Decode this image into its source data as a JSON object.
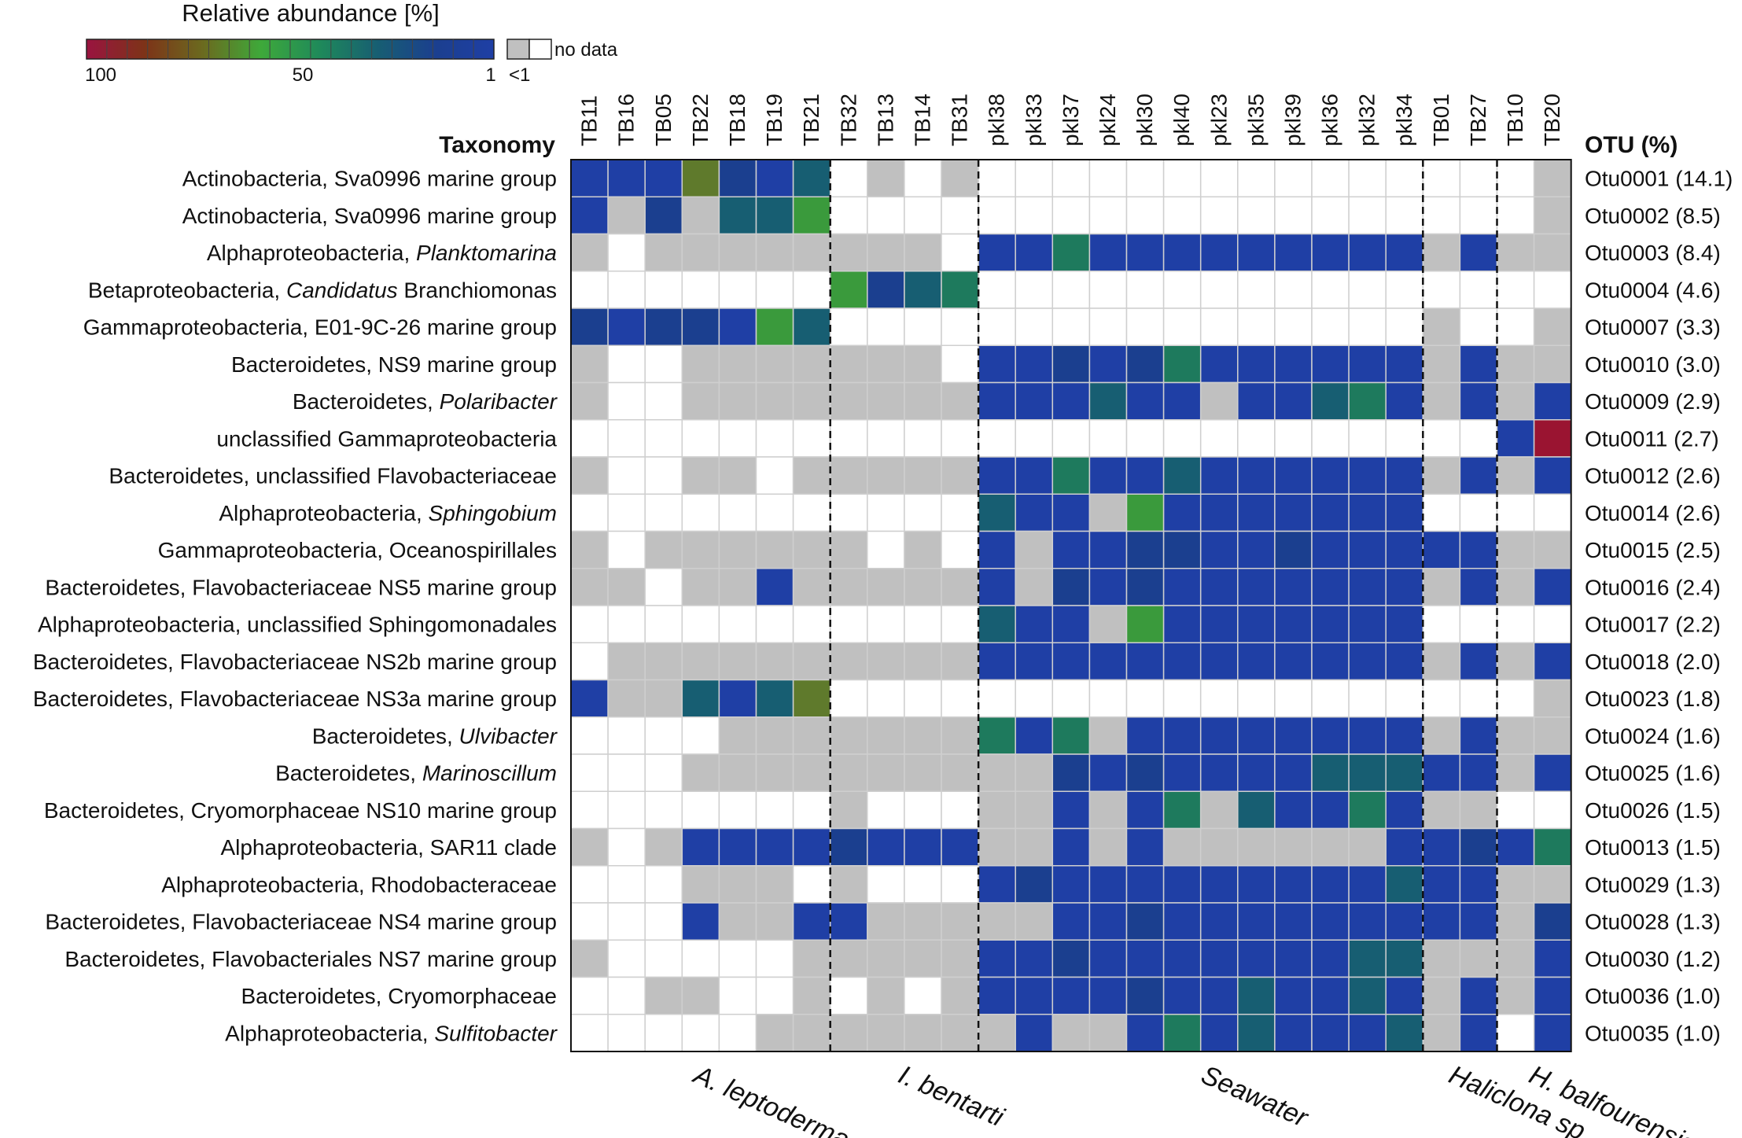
{
  "chart_data": {
    "type": "heatmap",
    "legend": {
      "title": "Relative abundance [%]",
      "ticks": [
        "100",
        "50",
        "1"
      ],
      "lt1_label": "<1",
      "nodata_label": "no data",
      "scale_max": 100,
      "scale_min": 1,
      "gradient_colors": [
        "#9a1440",
        "#7d3318",
        "#6b6a1f",
        "#3ea93a",
        "#1f8a5a",
        "#175e72",
        "#1b3f8f",
        "#1f3fa5"
      ],
      "nodata_color": "#c0c0c0",
      "lt1_color": "#ffffff"
    },
    "row_header": "Taxonomy",
    "otu_header": "OTU (%)",
    "columns": [
      "TB11",
      "TB16",
      "TB05",
      "TB22",
      "TB18",
      "TB19",
      "TB21",
      "TB32",
      "TB13",
      "TB14",
      "TB31",
      "pkl38",
      "pkl33",
      "pkl37",
      "pkl24",
      "pkl30",
      "pkl40",
      "pkl23",
      "pkl35",
      "pkl39",
      "pkl36",
      "pkl32",
      "pkl34",
      "TB01",
      "TB27",
      "TB10",
      "TB20"
    ],
    "groups": [
      {
        "name": "A. leptoderma",
        "start": 0,
        "end": 6
      },
      {
        "name": "I. bentarti",
        "start": 7,
        "end": 10
      },
      {
        "name": "Seawater",
        "start": 11,
        "end": 22
      },
      {
        "name": "Haliclona sp.",
        "start": 23,
        "end": 24
      },
      {
        "name": "H. balfourensis",
        "start": 25,
        "end": 26
      }
    ],
    "rows": [
      {
        "taxon": "Actinobacteria, Sva0996 marine group",
        "genus": "",
        "otu": "Otu0001 (14.1)"
      },
      {
        "taxon": "Actinobacteria, Sva0996 marine group",
        "genus": "",
        "otu": "Otu0002 (8.5)"
      },
      {
        "taxon": "Alphaproteobacteria, ",
        "genus": "Planktomarina",
        "otu": "Otu0003 (8.4)"
      },
      {
        "taxon": "Betaproteobacteria, ",
        "genus": "Candidatus",
        "suffix": " Branchiomonas",
        "otu": "Otu0004 (4.6)"
      },
      {
        "taxon": "Gammaproteobacteria, E01-9C-26 marine group",
        "genus": "",
        "otu": "Otu0007 (3.3)"
      },
      {
        "taxon": "Bacteroidetes, NS9 marine group",
        "genus": "",
        "otu": "Otu0010 (3.0)"
      },
      {
        "taxon": "Bacteroidetes, ",
        "genus": "Polaribacter",
        "otu": "Otu0009 (2.9)"
      },
      {
        "taxon": "unclassified Gammaproteobacteria",
        "genus": "",
        "otu": "Otu0011 (2.7)"
      },
      {
        "taxon": "Bacteroidetes, unclassified Flavobacteriaceae",
        "genus": "",
        "otu": "Otu0012 (2.6)"
      },
      {
        "taxon": "Alphaproteobacteria, ",
        "genus": "Sphingobium",
        "otu": "Otu0014 (2.6)"
      },
      {
        "taxon": "Gammaproteobacteria, Oceanospirillales",
        "genus": "",
        "otu": "Otu0015 (2.5)"
      },
      {
        "taxon": "Bacteroidetes, Flavobacteriaceae NS5 marine group",
        "genus": "",
        "otu": "Otu0016 (2.4)"
      },
      {
        "taxon": "Alphaproteobacteria, unclassified Sphingomonadales",
        "genus": "",
        "otu": "Otu0017 (2.2)"
      },
      {
        "taxon": "Bacteroidetes, Flavobacteriaceae NS2b marine group",
        "genus": "",
        "otu": "Otu0018 (2.0)"
      },
      {
        "taxon": "Bacteroidetes, Flavobacteriaceae NS3a marine group",
        "genus": "",
        "otu": "Otu0023 (1.8)"
      },
      {
        "taxon": "Bacteroidetes, ",
        "genus": "Ulvibacter",
        "otu": "Otu0024 (1.6)"
      },
      {
        "taxon": "Bacteroidetes, ",
        "genus": "Marinoscillum",
        "otu": "Otu0025 (1.6)"
      },
      {
        "taxon": "Bacteroidetes, Cryomorphaceae NS10 marine group",
        "genus": "",
        "otu": "Otu0026 (1.5)"
      },
      {
        "taxon": "Alphaproteobacteria, SAR11 clade",
        "genus": "",
        "otu": "Otu0013 (1.5)"
      },
      {
        "taxon": "Alphaproteobacteria, Rhodobacteraceae",
        "genus": "",
        "otu": "Otu0029 (1.3)"
      },
      {
        "taxon": "Bacteroidetes, Flavobacteriaceae NS4 marine group",
        "genus": "",
        "otu": "Otu0028 (1.3)"
      },
      {
        "taxon": "Bacteroidetes, Flavobacteriales NS7 marine group",
        "genus": "",
        "otu": "Otu0030 (1.2)"
      },
      {
        "taxon": "Bacteroidetes, Cryomorphaceae",
        "genus": "",
        "otu": "Otu0036 (1.0)"
      },
      {
        "taxon": "Alphaproteobacteria, ",
        "genus": "Sulfitobacter",
        "otu": "Otu0035 (1.0)"
      }
    ],
    "cell_codes": {
      "W": "below 1% (<1)",
      "G": "no data",
      "B": "~1-5%",
      "N": "~5-10%",
      "T": "~10-20%",
      "E": "~20-30%",
      "L": "~30-40%",
      "O": "~40-45%",
      "R": "~95-100%"
    },
    "cell_colors": {
      "W": "#ffffff",
      "G": "#c0c0c0",
      "B": "#1f3fa5",
      "N": "#1b3f8f",
      "T": "#175e72",
      "E": "#1e7a5d",
      "L": "#3a9a3c",
      "O": "#5f7a2c",
      "R": "#9a1431"
    },
    "matrix": [
      "BBBONBTWGWGWWWWWWWWWWWWWWWG",
      "BGNGTTLWWWWWWWWWWWWWWWWWWWG",
      "GWGGGGGGGGWBBEBBBBBBBBBGBGG",
      "WWWWWWWLNTEWWWWWWWWWWWWWWWW",
      "NBNNBLTWWWWWWWWWWWWWWWWGWWG",
      "GWWGGGGGGGWBBNBNEBBBBBBGBGG",
      "GWWGGGGGGGGBBBTBBGBBTEBGBGB",
      "WWWWWWWWWWWWWWWWWWWWWWWWWBR",
      "GWWGGWGGGGGBBEBBTBBBBBBGBGB",
      "WWWWWWWWWWWTBBGLBBBBBBBWWWW",
      "GWGGGGGGWGWBGBBNNBBNBBBBBGG",
      "GGWGGBGGGGGBGNBNBBBBBBBGBGB",
      "WWWWWWWWWWWTBBGLBBBBBBBWWWW",
      "WGGGGGGGGGGBBBBBBBBBBBBGBGB",
      "BGGTBTOWWWWWWWWWWWWWWWWWWWG",
      "WWWWGGGGGGGEBEGBBBBBBBBGBGG",
      "WWWGGGGGGGGGGNBNBBBBTTTBBGB",
      "WWWWWWWGWWWGGBGBEGTBBEBGGWW",
      "GWGBBBBNBBBGGBGBGGGGGGBBNBE",
      "WWWGGGWGWWWBNBBBBBBBBBTBBGG",
      "WWWBGGBBGGGGGBBNBBBBBBBBBGN",
      "GWWWWWGGGGGBBNBBBBBBBTTGGGB",
      "WWGGWWGWGWGBBBBNBBTBBTBGBGB",
      "WWWWWGGGGGGGBGGBEBTBBBTGBWB"
    ]
  }
}
